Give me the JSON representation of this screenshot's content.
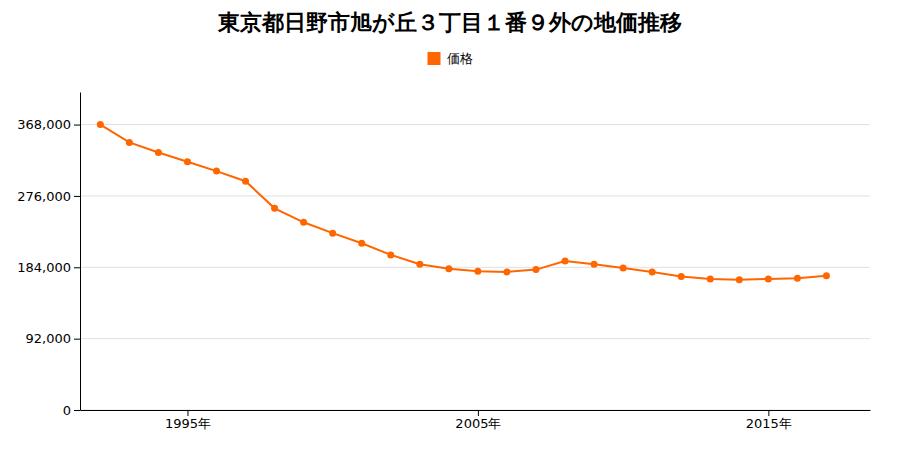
{
  "chart_data": {
    "type": "line",
    "title": "東京都日野市旭が丘３丁目１番９外の地価推移",
    "x": [
      1992,
      1993,
      1994,
      1995,
      1996,
      1997,
      1998,
      1999,
      2000,
      2001,
      2002,
      2003,
      2004,
      2005,
      2006,
      2007,
      2008,
      2009,
      2010,
      2011,
      2012,
      2013,
      2014,
      2015,
      2016,
      2017
    ],
    "series": [
      {
        "name": "価格",
        "color": "#FF6600",
        "marker": "circle",
        "values": [
          368000,
          345000,
          332000,
          320000,
          308000,
          295000,
          260000,
          242000,
          228000,
          215000,
          200000,
          188000,
          182000,
          179000,
          178000,
          181000,
          192000,
          188000,
          183000,
          178000,
          172000,
          169000,
          168000,
          169000,
          170000,
          173000
        ]
      }
    ],
    "xlim": [
      1991.3,
      2018.5
    ],
    "xticks": [
      {
        "value": 1995,
        "label": "1995年"
      },
      {
        "value": 2005,
        "label": "2005年"
      },
      {
        "value": 2015,
        "label": "2015年"
      }
    ],
    "ylim": [
      0,
      410000
    ],
    "yticks": [
      0,
      {
        "value": 92000,
        "label": "92,000"
      },
      {
        "value": 184000,
        "label": "184,000"
      },
      {
        "value": 276000,
        "label": "276,000"
      },
      {
        "value": 368000,
        "label": "368,000"
      }
    ],
    "grid": "y",
    "legend": "top"
  }
}
